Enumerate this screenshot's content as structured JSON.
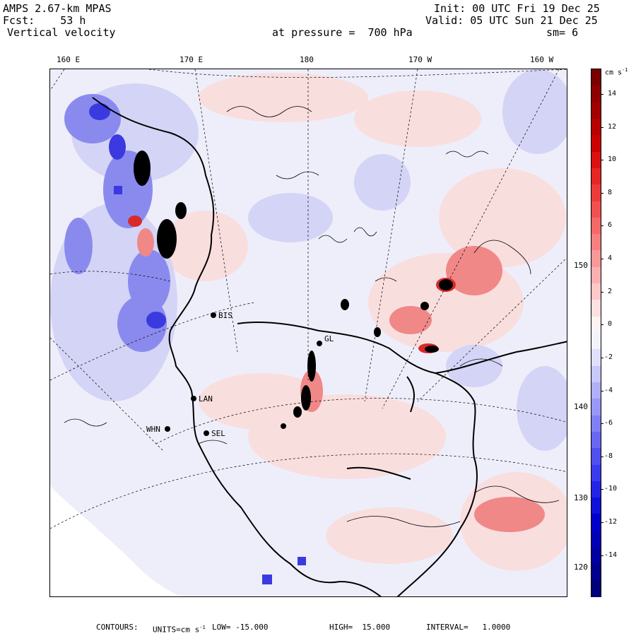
{
  "header": {
    "model": "AMPS 2.67-km MPAS",
    "forecast": "Fcst:    53 h",
    "field": "Vertical velocity",
    "init": "Init: 00 UTC Fri 19 Dec 25",
    "valid": "Valid: 05 UTC Sun 21 Dec 25",
    "level": "at pressure =  700 hPa",
    "smooth": "sm= 6"
  },
  "longitude_labels": [
    "160 E",
    "170 E",
    "180",
    "170 W",
    "160 W"
  ],
  "latitude_labels": [
    "150 W",
    "140 W",
    "130 W",
    "120 W"
  ],
  "stations": [
    "BIS",
    "LAN",
    "WHN",
    "SEL",
    "GL"
  ],
  "colorbar": {
    "units": "cm s",
    "units_exp": "-1",
    "labels": [
      "14",
      "12",
      "10",
      "8",
      "6",
      "4",
      "2",
      "0",
      "-2",
      "-4",
      "-6",
      "-8",
      "-10",
      "-12",
      "-14"
    ],
    "colors": [
      "#7a0000",
      "#8f0000",
      "#a30000",
      "#b80000",
      "#cc0000",
      "#dd1010",
      "#e82424",
      "#ee3a3a",
      "#f25050",
      "#f46868",
      "#f68080",
      "#f89898",
      "#fab0b0",
      "#fcc8c8",
      "#fde0e0",
      "#fff2f2",
      "#f2f2ff",
      "#e0e0fd",
      "#c8c8fa",
      "#b0b0f8",
      "#9898f6",
      "#8080f4",
      "#6868f2",
      "#5050f0",
      "#3a3aee",
      "#2424e8",
      "#1010dd",
      "#0000cc",
      "#0000b8",
      "#0000a3",
      "#00008f",
      "#00007a"
    ]
  },
  "footer": {
    "contours_label": "CONTOURS:",
    "units_label": "UNITS=cm s",
    "units_exp": "-1",
    "low": "LOW= -15.000",
    "high": "HIGH=  15.000",
    "interval": "INTERVAL=   1.0000"
  }
}
